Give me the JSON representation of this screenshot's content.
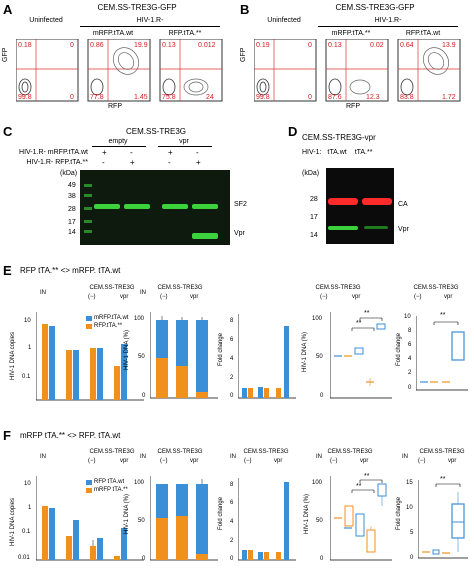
{
  "panelA": {
    "letter": "A",
    "title": "CEM.SS-TRE3G-GFP",
    "group_left": "Uninfected",
    "group_right": "HIV-1.R-",
    "sub1": "mRFP.tTA.wt",
    "sub2": "RFP.tTA.**",
    "ylabel": "GFP",
    "xlabel": "RFP",
    "plots": [
      {
        "tl": "0.18",
        "tr": "0",
        "bl": "99.8",
        "br": "0"
      },
      {
        "tl": "0.86",
        "tr": "19.9",
        "bl": "77.8",
        "br": "1.45"
      },
      {
        "tl": "0.13",
        "tr": "0.012",
        "bl": "75.8",
        "br": "24"
      }
    ]
  },
  "panelB": {
    "letter": "B",
    "title": "CEM.SS-TRE3G-GFP",
    "group_left": "Uninfected",
    "group_right": "HIV-1.R-",
    "sub1": "mRFP.tTA.**",
    "sub2": "RFP.tTA.wt",
    "ylabel": "GFP",
    "xlabel": "RFP",
    "plots": [
      {
        "tl": "0.19",
        "tr": "0",
        "bl": "99.8",
        "br": "0"
      },
      {
        "tl": "0.13",
        "tr": "0.02",
        "bl": "87.6",
        "br": "12.3"
      },
      {
        "tl": "0.64",
        "tr": "13.9",
        "bl": "83.8",
        "br": "1.72"
      }
    ]
  },
  "panelC": {
    "letter": "C",
    "title": "CEM.SS-TRE3G",
    "group1": "empty",
    "group2": "vpr",
    "row1": "HIV-1.R- mRFP.tTA.wt",
    "row2": "HIV-1.R- RFP.tTA.**",
    "row1_signs": [
      "+",
      "-",
      "+",
      "-"
    ],
    "row2_signs": [
      "-",
      "+",
      "-",
      "+"
    ],
    "kda": "(kDa)",
    "markers": [
      "49",
      "38",
      "28",
      "17",
      "14"
    ],
    "band1": "SF2",
    "band2": "Vpr"
  },
  "panelD": {
    "letter": "D",
    "title": "CEM.SS-TRE3G-vpr",
    "lanes_prefix": "HIV-1:",
    "lane1": "tTA.wt",
    "lane2": "tTA.**",
    "kda": "(kDa)",
    "markers": [
      "28",
      "17",
      "14"
    ],
    "band1": "CA",
    "band2": "Vpr"
  },
  "panelE": {
    "letter": "E",
    "title": "RFP tTA.** <> mRFP. tTA.wt",
    "in_label": "IN",
    "cem": "CEM.SS-TRE3G",
    "minus": "(−)",
    "vpr": "vpr",
    "legend1": "mRFP.tTA.wt",
    "legend2": "RFP.tTA.**",
    "ylabel1": "HIV-1 DNA copies",
    "yt1": [
      "10",
      "1",
      "0.1"
    ],
    "ylabel2": "HIV-1 DNA (%)",
    "yt2": [
      "100",
      "50",
      "0"
    ],
    "ylabel3": "Fold change",
    "yt3": [
      "8",
      "6",
      "4",
      "2",
      "0"
    ],
    "ylabel4": "HIV-1 DNA (%)",
    "yt4": [
      "100",
      "50",
      "0"
    ],
    "ylabel5": "Fold change",
    "yt5": [
      "10",
      "8",
      "6",
      "4",
      "2",
      "0"
    ],
    "sig": "**"
  },
  "panelF": {
    "letter": "F",
    "title": "mRFP tTA.** <> RFP. tTA.wt",
    "in_label": "IN",
    "cem": "CEM.SS-TRE3G",
    "minus": "(−)",
    "vpr": "vpr",
    "legend1": "RFP tTA.wt",
    "legend2": "mRFP tTA.**",
    "ylabel1": "HIV-1 DNA copies",
    "yt1": [
      "10",
      "1",
      "0.1",
      "0.01"
    ],
    "ylabel2": "HIV-1 DNA (%)",
    "yt2": [
      "100",
      "50",
      "0"
    ],
    "ylabel3": "Fold change",
    "yt3": [
      "8",
      "6",
      "4",
      "2",
      "0"
    ],
    "ylabel4": "HIV-1 DNA (%)",
    "yt4": [
      "100",
      "50",
      "0"
    ],
    "ylabel5": "Fold change",
    "yt5": [
      "15",
      "10",
      "5",
      "0"
    ],
    "sig": "**"
  },
  "colors": {
    "blue": "#3a8fd6",
    "orange": "#f0911e",
    "red_text": "#d42020",
    "gel_green": "#3cd23c",
    "gel_red": "#ff2a2a"
  }
}
